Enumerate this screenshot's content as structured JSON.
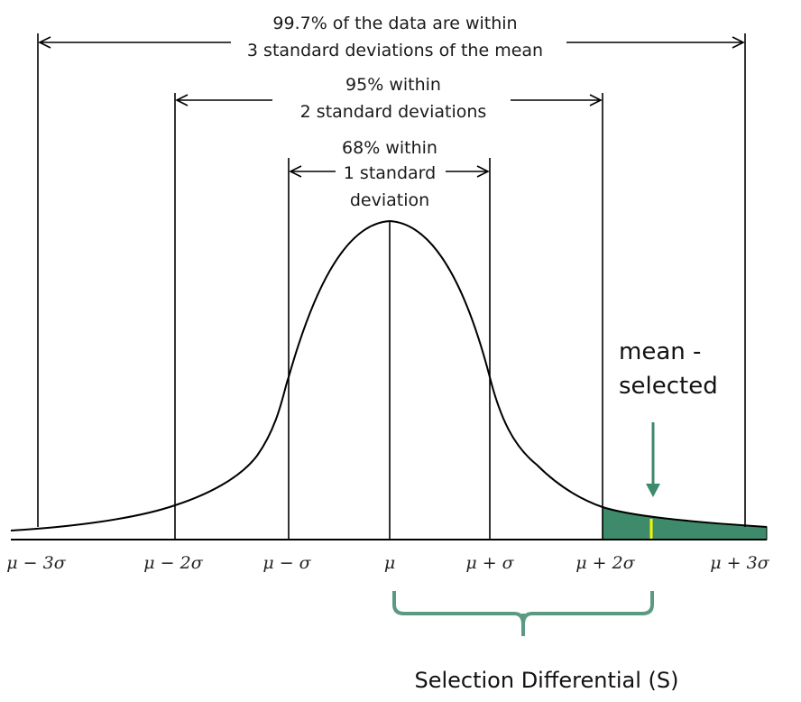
{
  "annotations": {
    "range3": {
      "line1": "99.7% of the data are within",
      "line2": "3 standard deviations of the mean"
    },
    "range2": {
      "line1": "95% within",
      "line2": "2 standard deviations"
    },
    "range1": {
      "line1": "68% within",
      "line2": "1 standard",
      "line3": "deviation"
    }
  },
  "axis_labels": {
    "m3": "μ − 3σ",
    "m2": "μ − 2σ",
    "m1": "μ − σ",
    "mu": "μ",
    "p1": "μ + σ",
    "p2": "μ + 2σ",
    "p3": "μ + 3σ"
  },
  "callout": {
    "line1": "mean -",
    "line2": "selected"
  },
  "brace_label": "Selection Differential (S)",
  "colors": {
    "curve": "#000000",
    "shade": "#3d8b6b",
    "selected_mean_marker": "#f5f500",
    "arrow": "#3d8b6b",
    "brace": "#5a9a80"
  }
}
